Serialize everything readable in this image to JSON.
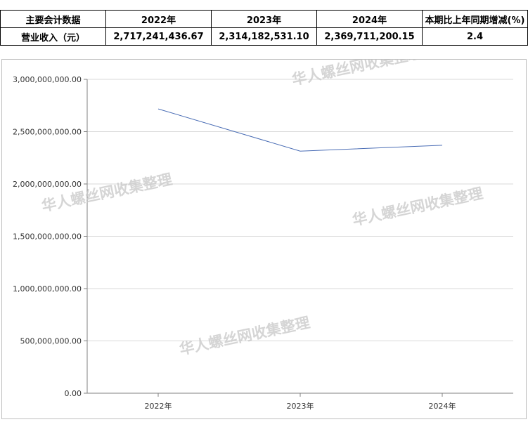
{
  "table": {
    "headers": [
      "主要会计数据",
      "2022年",
      "2023年",
      "2024年",
      "本期比上年同期增减(%)"
    ],
    "row": [
      "营业收入（元）",
      "2,717,241,436.67",
      "2,314,182,531.10",
      "2,369,711,200.15",
      "2.4"
    ]
  },
  "watermark": "华人螺丝网收集整理",
  "chart_data": {
    "type": "line",
    "categories": [
      "2022年",
      "2023年",
      "2024年"
    ],
    "series": [
      {
        "values": [
          2717241436.67,
          2314182531.1,
          2369711200.15
        ]
      }
    ],
    "ylim": [
      0,
      3000000000
    ],
    "yticks": [
      "0.00",
      "500,000,000.00",
      "1,000,000,000.00",
      "1,500,000,000.00",
      "2,000,000,000.00",
      "2,500,000,000.00",
      "3,000,000,000.00"
    ],
    "grid": true,
    "line_color": "#4a6db5"
  }
}
